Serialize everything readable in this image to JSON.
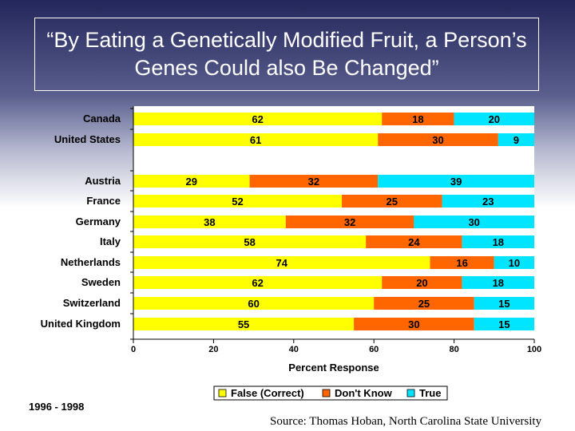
{
  "slide": {
    "title": "“By Eating a Genetically Modified Fruit, a Person’s Genes Could also Be Changed”",
    "period": "1996 - 1998",
    "source": "Source: Thomas Hoban, North Carolina State University"
  },
  "chart_data": {
    "type": "bar",
    "orientation": "horizontal",
    "stacked": true,
    "title": "",
    "xlabel": "Percent Response",
    "ylabel": "",
    "xlim": [
      0,
      100
    ],
    "x_ticks": [
      0,
      20,
      40,
      60,
      80,
      100
    ],
    "categories": [
      "Canada",
      "United States",
      "Austria",
      "France",
      "Germany",
      "Italy",
      "Netherlands",
      "Sweden",
      "Switzerland",
      "United Kingdom"
    ],
    "series": [
      {
        "name": "False (Correct)",
        "color": "#ffff00",
        "values": [
          62,
          61,
          29,
          52,
          38,
          58,
          74,
          62,
          60,
          55
        ]
      },
      {
        "name": "Don't Know",
        "color": "#ff6600",
        "values": [
          18,
          30,
          32,
          25,
          32,
          24,
          16,
          20,
          25,
          30
        ]
      },
      {
        "name": "True",
        "color": "#00e5ff",
        "values": [
          20,
          9,
          39,
          23,
          30,
          18,
          10,
          18,
          15,
          15
        ]
      }
    ],
    "legend_position": "bottom",
    "grid": false
  }
}
